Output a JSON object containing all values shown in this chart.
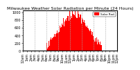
{
  "title": "Milwaukee Weather Solar Radiation per Minute (24 Hours)",
  "bar_color": "#ff0000",
  "background_color": "#ffffff",
  "xlabel": "",
  "ylabel": "",
  "xlim": [
    0,
    1440
  ],
  "ylim": [
    0,
    1050
  ],
  "legend_label": "Solar Rad.",
  "legend_color": "#ff0000",
  "grid_color": "#aaaaaa",
  "tick_label_fontsize": 3.5,
  "ytick_fontsize": 3.5,
  "title_fontsize": 4.5,
  "num_minutes": 1440,
  "peak_minute": 780,
  "peak_value": 950,
  "noise_scale": 60
}
